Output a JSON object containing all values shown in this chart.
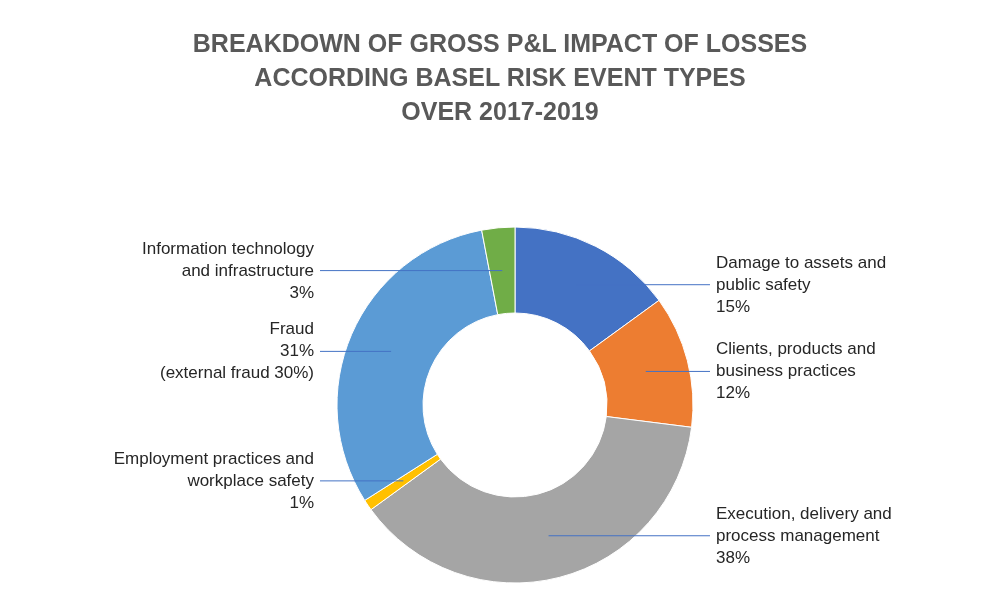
{
  "chart_data": {
    "type": "donut",
    "title": "BREAKDOWN OF GROSS P&L IMPACT OF LOSSES\nACCORDING BASEL RISK EVENT TYPES\nOVER 2017-2019",
    "categories": [
      "Damage to assets and public safety",
      "Clients, products and business practices",
      "Execution, delivery and process management",
      "Employment practices and workplace safety",
      "Fraud",
      "Information technology and infrastructure"
    ],
    "values": [
      15,
      12,
      38,
      1,
      31,
      3
    ],
    "value_labels": [
      "15%",
      "12%",
      "38%",
      "1%",
      "31%",
      "3%"
    ],
    "colors": [
      "#4472c4",
      "#ed7d31",
      "#a5a5a5",
      "#ffc000",
      "#5b9bd5",
      "#70ad47"
    ],
    "annotations": [
      {
        "text": "(external fraud 30%)",
        "x": "Fraud"
      }
    ],
    "legend": false
  }
}
